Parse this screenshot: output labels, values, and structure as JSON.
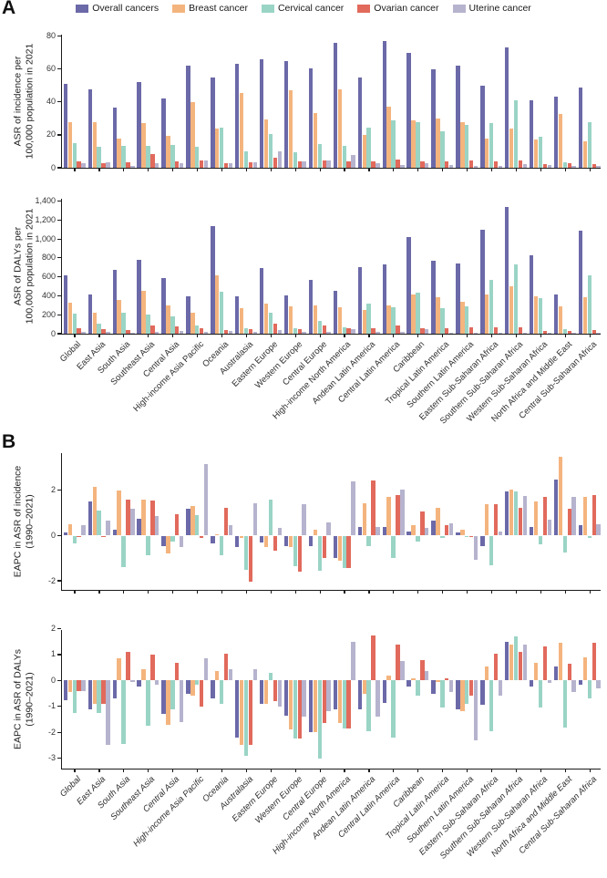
{
  "panel_a_label": "A",
  "panel_b_label": "B",
  "legend": {
    "items": [
      {
        "label": "Overall cancers",
        "color": "#6b69a8"
      },
      {
        "label": "Breast cancer",
        "color": "#f4b47e"
      },
      {
        "label": "Cervical cancer",
        "color": "#9ad4c5"
      },
      {
        "label": "Ovarian cancer",
        "color": "#e16a5c"
      },
      {
        "label": "Uterine cancer",
        "color": "#b6b3ce"
      }
    ]
  },
  "categories": [
    "Global",
    "East Asia",
    "South Asia",
    "Southeast Asia",
    "Central Asia",
    "High-income Asia Pacific",
    "Oceania",
    "Australasia",
    "Eastern Europe",
    "Western Europe",
    "Central Europe",
    "High-income North America",
    "Andean Latin America",
    "Central Latin America",
    "Caribbean",
    "Tropical Latin America",
    "Southern Latin America",
    "Eastern Sub-Saharan Africa",
    "Southern Sub-Saharan Africa",
    "Western Sub-Saharan Africa",
    "North Africa and Middle East",
    "Central Sub-Saharan Africa"
  ],
  "chart_data": [
    {
      "id": "asr-incidence",
      "type": "bar",
      "ylabel_line1": "ASR of incidence per",
      "ylabel_line2": "100,000 population in 2021",
      "ylim": [
        0,
        81
      ],
      "ytick_values": [
        0,
        20,
        40,
        60,
        80
      ],
      "ytick_labels": [
        "0",
        "20",
        "40",
        "60",
        "80"
      ],
      "show_xlabels": false,
      "xlabel_italic": false,
      "series": [
        {
          "name": "Overall cancers",
          "color": "#6b69a8",
          "values": [
            51,
            47.5,
            36.5,
            52,
            42,
            62,
            55,
            63,
            66,
            65,
            60.5,
            76,
            55,
            77,
            70,
            60,
            62,
            50,
            73,
            41,
            43,
            49
          ]
        },
        {
          "name": "Breast cancer",
          "color": "#f4b47e",
          "values": [
            27.5,
            28,
            18,
            27,
            19.5,
            40,
            24,
            45.5,
            29.5,
            47,
            33.5,
            47.5,
            20,
            37,
            29,
            30,
            28,
            18,
            24,
            17,
            33,
            16
          ]
        },
        {
          "name": "Cervical cancer",
          "color": "#9ad4c5",
          "values": [
            15,
            13,
            13.5,
            13.5,
            14,
            13,
            24.5,
            10,
            20.5,
            9.5,
            14.5,
            13.5,
            24.5,
            29,
            28,
            22,
            26,
            27,
            41,
            19,
            3.5,
            28
          ]
        },
        {
          "name": "Ovarian cancer",
          "color": "#e16a5c",
          "values": [
            4,
            3,
            3.5,
            8.5,
            4,
            4.5,
            3,
            3.5,
            6,
            4,
            4.5,
            4,
            4,
            5,
            4,
            4,
            4.5,
            4,
            4.5,
            2,
            2.5,
            2
          ]
        },
        {
          "name": "Uterine cancer",
          "color": "#b6b3ce",
          "values": [
            2.5,
            3.5,
            1,
            2.5,
            3,
            4.5,
            3,
            3.5,
            10,
            4,
            4.5,
            7.5,
            2.5,
            1.5,
            3,
            1.5,
            1,
            1,
            2,
            1.5,
            1,
            1
          ]
        }
      ]
    },
    {
      "id": "asr-dalys",
      "type": "bar",
      "ylabel_line1": "ASR of DALYs per",
      "ylabel_line2": "100,000 population in 2021",
      "ylim": [
        0,
        1425
      ],
      "ytick_values": [
        0,
        200,
        400,
        600,
        800,
        1000,
        1200,
        1400
      ],
      "ytick_labels": [
        "0",
        "200",
        "400",
        "600",
        "800",
        "1,000",
        "1,200",
        "1,400"
      ],
      "show_xlabels": true,
      "xlabel_italic": false,
      "series": [
        {
          "name": "Overall cancers",
          "color": "#6b69a8",
          "values": [
            620,
            410,
            670,
            780,
            585,
            395,
            1140,
            390,
            690,
            400,
            570,
            450,
            700,
            735,
            1020,
            775,
            745,
            1100,
            1340,
            830,
            415,
            1090
          ]
        },
        {
          "name": "Breast cancer",
          "color": "#f4b47e",
          "values": [
            330,
            220,
            360,
            455,
            295,
            225,
            620,
            270,
            320,
            290,
            295,
            280,
            250,
            300,
            410,
            385,
            340,
            415,
            500,
            395,
            290,
            385
          ]
        },
        {
          "name": "Cervical cancer",
          "color": "#9ad4c5",
          "values": [
            210,
            110,
            220,
            200,
            185,
            85,
            445,
            55,
            220,
            55,
            135,
            70,
            320,
            280,
            435,
            265,
            290,
            565,
            730,
            380,
            45,
            620
          ]
        },
        {
          "name": "Ovarian cancer",
          "color": "#e16a5c",
          "values": [
            60,
            45,
            40,
            90,
            75,
            60,
            35,
            50,
            105,
            50,
            85,
            55,
            60,
            90,
            60,
            60,
            65,
            65,
            65,
            25,
            30,
            40
          ]
        },
        {
          "name": "Uterine cancer",
          "color": "#b6b3ce",
          "values": [
            20,
            15,
            10,
            20,
            25,
            15,
            25,
            15,
            35,
            20,
            20,
            45,
            15,
            15,
            50,
            10,
            10,
            10,
            10,
            10,
            10,
            10
          ]
        }
      ]
    },
    {
      "id": "eapc-incidence",
      "type": "bar",
      "ylabel_line1": "EAPC in ASR of incidence",
      "ylabel_line2": "(1990–2021)",
      "ylim": [
        -2.4,
        3.65
      ],
      "ytick_values": [
        -2,
        0,
        2
      ],
      "ytick_labels": [
        "-2",
        "0",
        "2"
      ],
      "show_xlabels": false,
      "xlabel_italic": false,
      "series": [
        {
          "name": "Overall cancers",
          "color": "#6b69a8",
          "values": [
            0.15,
            1.5,
            0.25,
            0.75,
            -0.45,
            1.2,
            -0.35,
            -0.5,
            -0.3,
            -0.45,
            -0.45,
            -1.0,
            0.4,
            0.4,
            0.2,
            0.65,
            0.15,
            -0.45,
            1.95,
            0.4,
            2.5,
            0.45
          ]
        },
        {
          "name": "Breast cancer",
          "color": "#f4b47e",
          "values": [
            0.5,
            2.15,
            2.0,
            1.6,
            -0.8,
            1.3,
            0.05,
            -0.1,
            -0.5,
            -0.5,
            0.25,
            -1.1,
            1.45,
            1.7,
            0.45,
            1.25,
            0.25,
            1.4,
            2.05,
            1.5,
            3.5,
            1.7
          ]
        },
        {
          "name": "Cervical cancer",
          "color": "#9ad4c5",
          "values": [
            -0.35,
            1.1,
            -1.4,
            -0.85,
            -0.25,
            0.9,
            -0.85,
            -1.5,
            1.6,
            -1.35,
            -1.55,
            -1.45,
            -0.45,
            -1.0,
            -0.25,
            -0.1,
            -0.05,
            -1.3,
            1.95,
            -0.4,
            -0.75,
            -0.1
          ]
        },
        {
          "name": "Ovarian cancer",
          "color": "#e16a5c",
          "values": [
            -0.05,
            -0.05,
            1.6,
            1.55,
            0.95,
            -0.1,
            1.25,
            -2.05,
            -0.65,
            -1.6,
            -1.0,
            -1.45,
            2.45,
            1.8,
            1.05,
            0.45,
            0,
            1.4,
            1.25,
            1.7,
            1.2,
            1.8
          ]
        },
        {
          "name": "Uterine cancer",
          "color": "#b6b3ce",
          "values": [
            0.45,
            0.65,
            1.2,
            0.85,
            -0.5,
            3.15,
            0.45,
            1.45,
            0.35,
            1.4,
            0.6,
            2.4,
            0.4,
            2.05,
            0.35,
            0.55,
            -1.05,
            0.2,
            1.75,
            0.7,
            1.7,
            0.5
          ]
        }
      ]
    },
    {
      "id": "eapc-dalys",
      "type": "bar",
      "ylabel_line1": "EAPC in ASR of DALYs",
      "ylabel_line2": "(1990–2021)",
      "ylim": [
        -3.4,
        1.95
      ],
      "ytick_values": [
        -3,
        -2,
        -1,
        0,
        1,
        2
      ],
      "ytick_labels": [
        "-3",
        "-2",
        "-1",
        "0",
        "1",
        "2"
      ],
      "show_xlabels": true,
      "xlabel_italic": true,
      "series": [
        {
          "name": "Overall cancers",
          "color": "#6b69a8",
          "values": [
            -0.75,
            -1.1,
            -0.7,
            -0.25,
            -1.3,
            -0.5,
            -0.7,
            -2.2,
            -0.9,
            -1.35,
            -2.0,
            -1.1,
            -1.1,
            -0.85,
            -0.25,
            -0.5,
            -1.1,
            -0.95,
            1.5,
            -0.25,
            0.55,
            -0.15
          ]
        },
        {
          "name": "Breast cancer",
          "color": "#f4b47e",
          "values": [
            -0.45,
            -0.9,
            0.85,
            0.45,
            -1.7,
            -0.6,
            0.35,
            -2.5,
            -0.9,
            -1.9,
            -2.0,
            -1.65,
            -0.5,
            0.2,
            0.1,
            -0.05,
            -1.2,
            0.55,
            1.4,
            0.7,
            1.45,
            0.9
          ]
        },
        {
          "name": "Cervical cancer",
          "color": "#9ad4c5",
          "values": [
            -1.25,
            -1.25,
            -2.45,
            -1.75,
            -1.1,
            -0.15,
            -0.9,
            -2.9,
            0.3,
            -2.25,
            -3.0,
            -1.85,
            -1.95,
            -2.2,
            -0.6,
            -1.05,
            -0.9,
            -1.95,
            1.7,
            -1.05,
            -1.8,
            -0.7
          ]
        },
        {
          "name": "Ovarian cancer",
          "color": "#e16a5c",
          "values": [
            -0.4,
            -0.9,
            1.1,
            1.0,
            0.7,
            -1.0,
            1.05,
            -2.5,
            -0.8,
            -2.25,
            -1.65,
            -1.85,
            1.75,
            1.4,
            0.8,
            0.1,
            -0.6,
            1.05,
            1.1,
            1.3,
            0.65,
            1.45
          ]
        },
        {
          "name": "Uterine cancer",
          "color": "#b6b3ce",
          "values": [
            -0.4,
            -2.5,
            -0.05,
            -0.15,
            -1.6,
            0.85,
            0.45,
            0.45,
            -1.0,
            -1.4,
            -1.2,
            1.5,
            -1.4,
            0.75,
            0.35,
            -0.45,
            -2.3,
            -0.6,
            1.4,
            -0.1,
            -0.45,
            -0.3
          ]
        }
      ]
    }
  ]
}
